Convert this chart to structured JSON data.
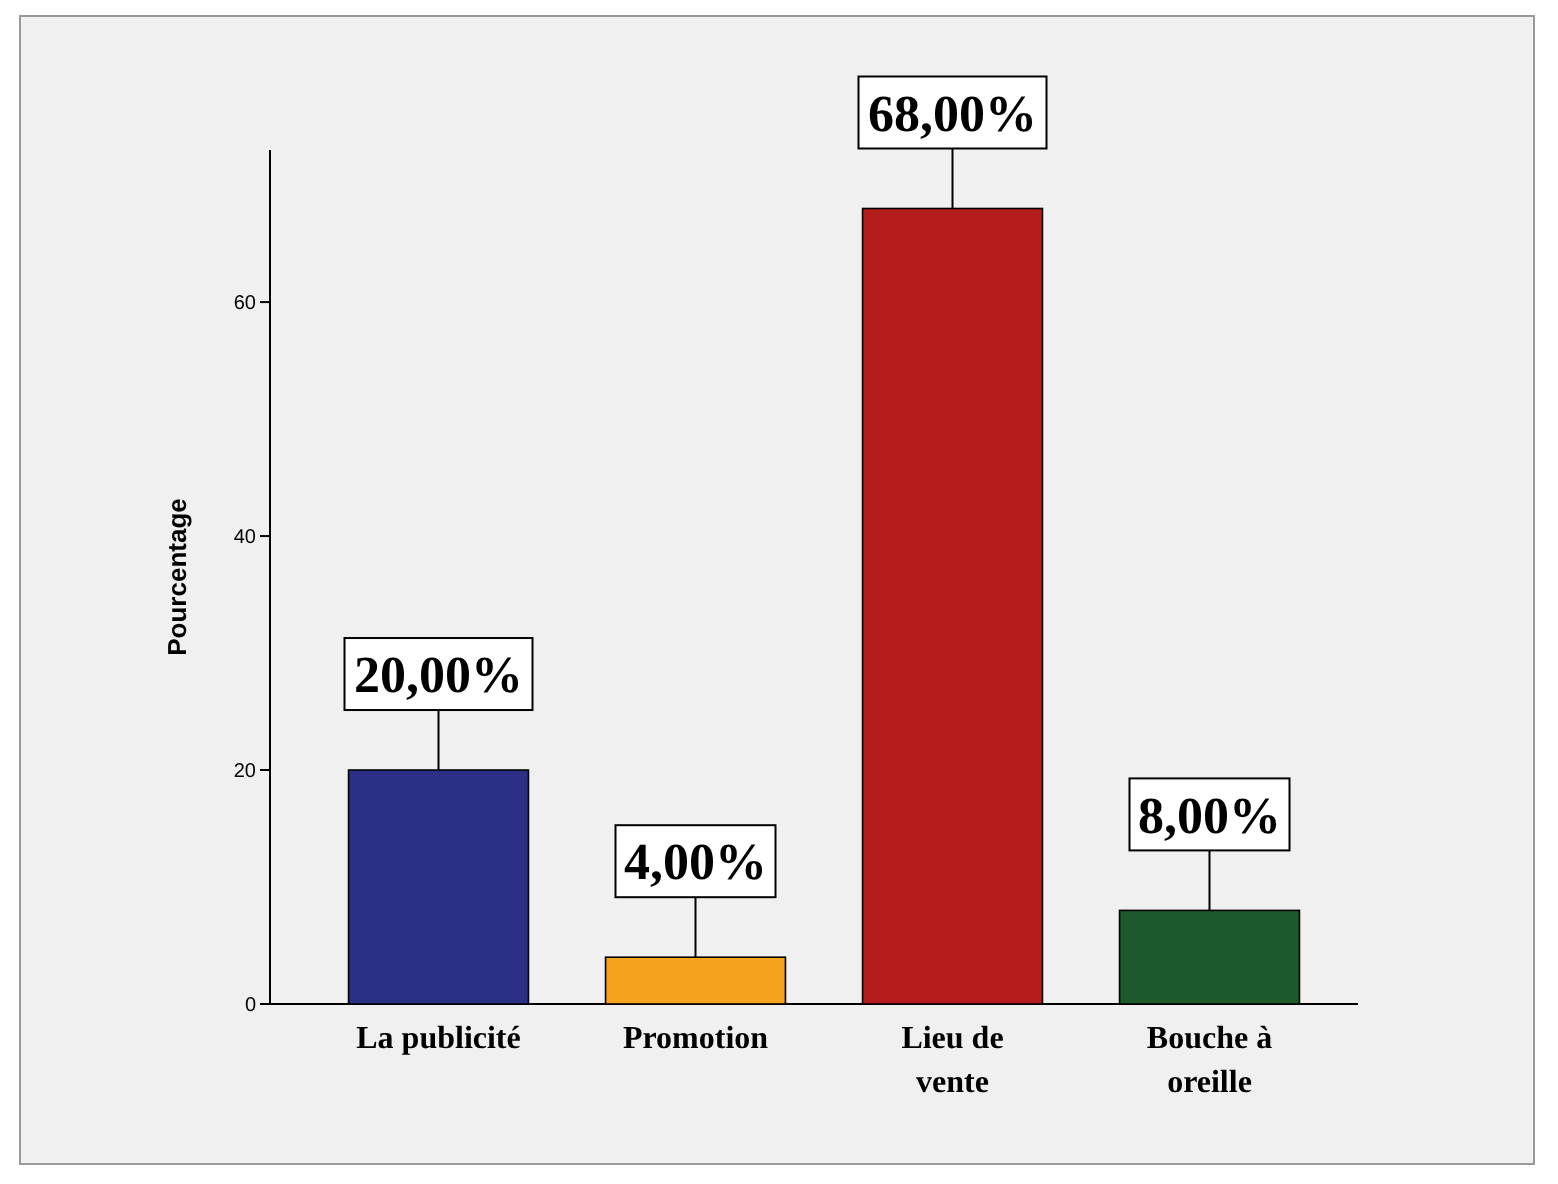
{
  "chart_data": {
    "type": "bar",
    "ylabel": "Pourcentage",
    "categories": [
      "La publicité",
      "Promotion",
      "Lieu de vente",
      "Bouche à oreille"
    ],
    "values": [
      20,
      4,
      68,
      8
    ],
    "colors": [
      "#2b2f85",
      "#f5a21f",
      "#b51c1c",
      "#1c5a2c"
    ],
    "value_labels": [
      "20,00%",
      "4,00%",
      "68,00%",
      "8,00%"
    ],
    "ylim": [
      0,
      73
    ],
    "yticks": [
      0,
      20,
      40,
      60
    ]
  }
}
